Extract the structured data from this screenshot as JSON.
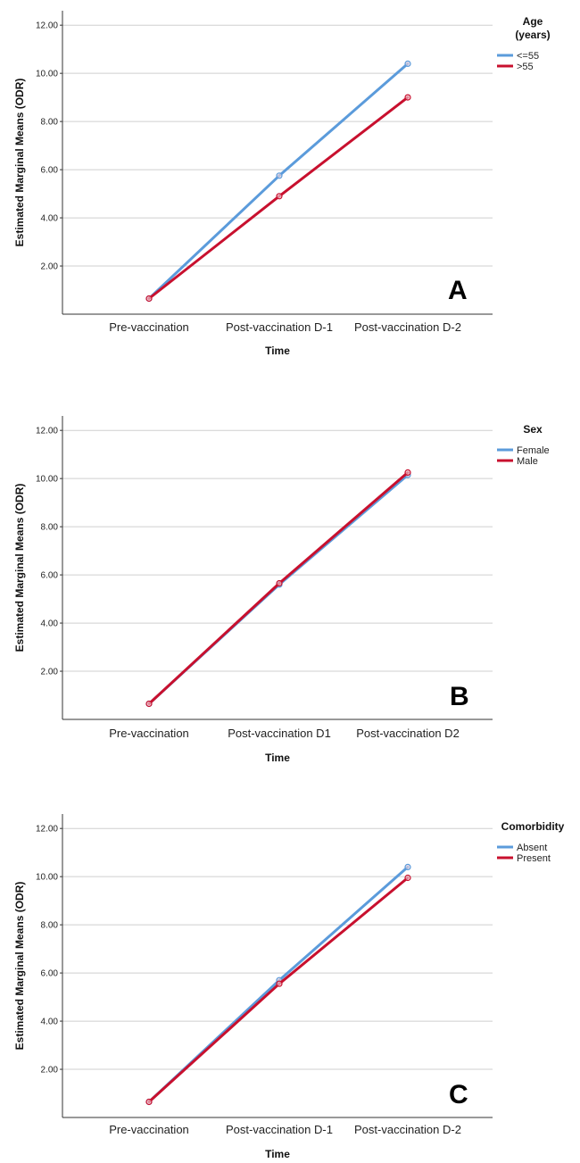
{
  "chart_data": [
    {
      "type": "line",
      "panel_label": "A",
      "xlabel": "Time",
      "ylabel": "Estimated Marginal Means (ODR)",
      "categories": [
        "Pre-vaccination",
        "Post-vaccination D-1",
        "Post-vaccination D-2"
      ],
      "yticks": [
        "2.00",
        "4.00",
        "6.00",
        "8.00",
        "10.00",
        "12.00"
      ],
      "ylim": [
        0,
        12.6
      ],
      "grid": "horizontal",
      "legend_title": [
        "Age",
        "(years)"
      ],
      "legend_position": "right",
      "series": [
        {
          "name": "<=55",
          "color": "#5B9BDB",
          "values": [
            0.65,
            5.75,
            10.4
          ]
        },
        {
          "name": ">55",
          "color": "#C8102E",
          "values": [
            0.65,
            4.9,
            9.0
          ]
        }
      ]
    },
    {
      "type": "line",
      "panel_label": "B",
      "xlabel": "Time",
      "ylabel": "Estimated Marginal Means (ODR)",
      "categories": [
        "Pre-vaccination",
        "Post-vaccination D1",
        "Post-vaccination D2"
      ],
      "yticks": [
        "2.00",
        "4.00",
        "6.00",
        "8.00",
        "10.00",
        "12.00"
      ],
      "ylim": [
        0,
        12.6
      ],
      "grid": "horizontal",
      "legend_title": [
        "Sex"
      ],
      "legend_position": "right",
      "series": [
        {
          "name": "Female",
          "color": "#5B9BDB",
          "values": [
            0.65,
            5.6,
            10.15
          ]
        },
        {
          "name": "Male",
          "color": "#C8102E",
          "values": [
            0.65,
            5.65,
            10.25
          ]
        }
      ]
    },
    {
      "type": "line",
      "panel_label": "C",
      "xlabel": "Time",
      "ylabel": "Estimated Marginal Means (ODR)",
      "categories": [
        "Pre-vaccination",
        "Post-vaccination D-1",
        "Post-vaccination D-2"
      ],
      "yticks": [
        "2.00",
        "4.00",
        "6.00",
        "8.00",
        "10.00",
        "12.00"
      ],
      "ylim": [
        0,
        12.6
      ],
      "grid": "horizontal",
      "legend_title": [
        "Comorbidity"
      ],
      "legend_position": "right",
      "series": [
        {
          "name": "Absent",
          "color": "#5B9BDB",
          "values": [
            0.65,
            5.7,
            10.4
          ]
        },
        {
          "name": "Present",
          "color": "#C8102E",
          "values": [
            0.65,
            5.55,
            9.95
          ]
        }
      ]
    }
  ]
}
